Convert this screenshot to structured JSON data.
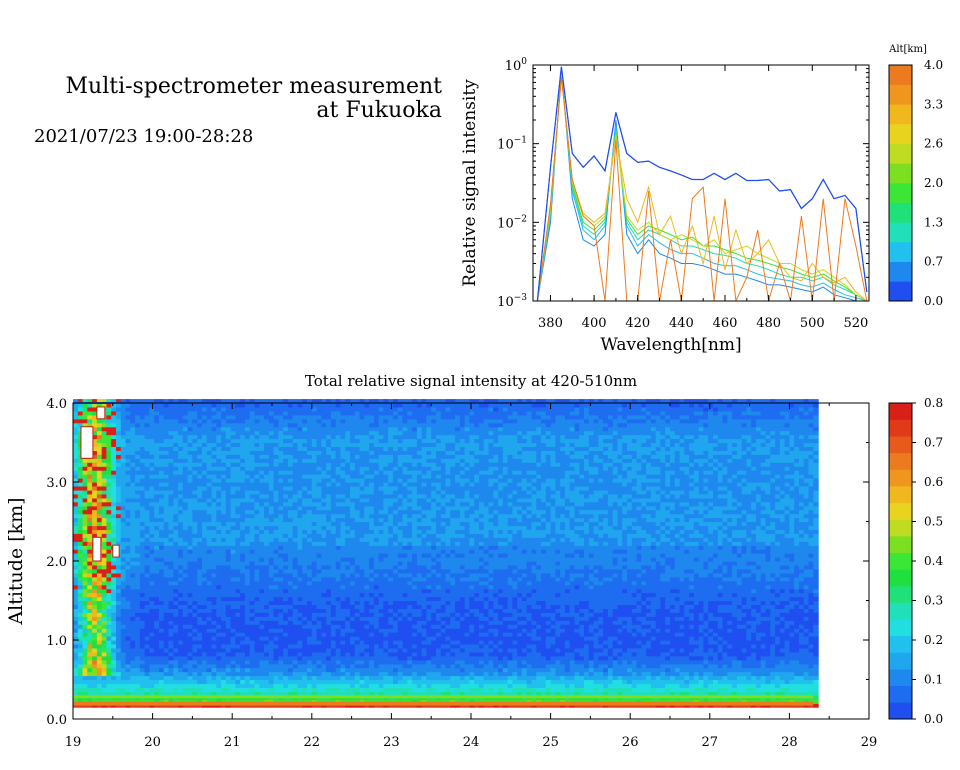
{
  "header": {
    "title_line1": "Multi-spectrometer measurement",
    "title_line2": "at Fukuoka",
    "datetime": "2021/07/23 19:00-28:28"
  },
  "chart_data": [
    {
      "type": "line",
      "xlabel": "Wavelength[nm]",
      "ylabel": "Relative signal intensity",
      "xlim": [
        372,
        526
      ],
      "ylim": [
        0.001,
        1
      ],
      "yscale": "log",
      "x_ticks": [
        "380",
        "400",
        "420",
        "440",
        "460",
        "480",
        "500",
        "520"
      ],
      "y_ticks": [
        "10^-3",
        "10^-2",
        "10^-1",
        "10^0"
      ],
      "colorbar": {
        "title": "Alt[km]",
        "labels": [
          "0.0",
          "0.7",
          "1.3",
          "2.0",
          "2.6",
          "3.3",
          "4.0"
        ],
        "colors": [
          "#1f4ff0",
          "#1e88ef",
          "#21c0ee",
          "#21dfb8",
          "#20e07a",
          "#3be637",
          "#7ddf22",
          "#c0dc22",
          "#e8d31f",
          "#f0b81e",
          "#ee961e",
          "#ec7a1e"
        ]
      },
      "x": [
        374,
        380,
        385,
        390,
        395,
        400,
        405,
        410,
        415,
        420,
        425,
        430,
        435,
        440,
        445,
        450,
        455,
        460,
        465,
        470,
        475,
        480,
        485,
        490,
        495,
        500,
        505,
        510,
        515,
        520,
        525
      ],
      "series": [
        {
          "color": "#1f4ff0",
          "values": [
            0.001,
            0.05,
            0.95,
            0.075,
            0.05,
            0.07,
            0.045,
            0.25,
            0.075,
            0.058,
            0.06,
            0.05,
            0.045,
            0.04,
            0.035,
            0.035,
            0.042,
            0.035,
            0.042,
            0.034,
            0.034,
            0.035,
            0.025,
            0.026,
            0.015,
            0.02,
            0.035,
            0.02,
            0.022,
            0.015,
            0.0013
          ]
        },
        {
          "color": "#1e88ef",
          "values": [
            0.001,
            0.01,
            0.9,
            0.02,
            0.006,
            0.005,
            0.007,
            0.2,
            0.007,
            0.004,
            0.006,
            0.004,
            0.0035,
            0.003,
            0.003,
            0.0028,
            0.0025,
            0.0022,
            0.0022,
            0.002,
            0.0018,
            0.0016,
            0.0016,
            0.0015,
            0.0014,
            0.0013,
            0.0015,
            0.0012,
            0.0011,
            0.001,
            0.001
          ]
        },
        {
          "color": "#21c0ee",
          "values": [
            0.001,
            0.012,
            0.85,
            0.025,
            0.008,
            0.006,
            0.009,
            0.17,
            0.009,
            0.005,
            0.007,
            0.0055,
            0.0045,
            0.004,
            0.004,
            0.0035,
            0.003,
            0.0028,
            0.0028,
            0.0025,
            0.0022,
            0.002,
            0.0019,
            0.0018,
            0.0016,
            0.0015,
            0.0017,
            0.0014,
            0.0012,
            0.0011,
            0.001
          ]
        },
        {
          "color": "#21dfb8",
          "values": [
            0.001,
            0.013,
            0.8,
            0.028,
            0.009,
            0.007,
            0.01,
            0.15,
            0.01,
            0.006,
            0.008,
            0.007,
            0.006,
            0.005,
            0.005,
            0.0045,
            0.004,
            0.0038,
            0.0035,
            0.003,
            0.0028,
            0.0025,
            0.0022,
            0.002,
            0.002,
            0.0018,
            0.002,
            0.0016,
            0.0014,
            0.0012,
            0.001
          ]
        },
        {
          "color": "#3be637",
          "values": [
            0.001,
            0.014,
            0.78,
            0.03,
            0.01,
            0.008,
            0.011,
            0.14,
            0.011,
            0.007,
            0.009,
            0.008,
            0.007,
            0.006,
            0.0065,
            0.005,
            0.005,
            0.0045,
            0.004,
            0.0035,
            0.0033,
            0.003,
            0.0027,
            0.0025,
            0.0022,
            0.002,
            0.0022,
            0.0018,
            0.0015,
            0.0012,
            0.001
          ]
        },
        {
          "color": "#c0dc22",
          "values": [
            0.001,
            0.015,
            0.75,
            0.032,
            0.012,
            0.009,
            0.012,
            0.13,
            0.012,
            0.008,
            0.01,
            0.007,
            0.006,
            0.007,
            0.006,
            0.005,
            0.006,
            0.004,
            0.0045,
            0.005,
            0.004,
            0.0035,
            0.003,
            0.003,
            0.0025,
            0.0022,
            0.0025,
            0.002,
            0.0016,
            0.0012,
            0.001
          ]
        },
        {
          "color": "#f0b81e",
          "values": [
            0.001,
            0.016,
            0.72,
            0.034,
            0.013,
            0.01,
            0.013,
            0.12,
            0.02,
            0.01,
            0.028,
            0.007,
            0.012,
            0.004,
            0.009,
            0.003,
            0.012,
            0.0025,
            0.008,
            0.003,
            0.004,
            0.006,
            0.003,
            0.002,
            0.0018,
            0.003,
            0.002,
            0.0017,
            0.002,
            0.0013,
            0.001
          ]
        },
        {
          "color": "#ec7a1e",
          "values": [
            0.001,
            0.017,
            0.7,
            0.035,
            0.012,
            0.009,
            0.001,
            0.11,
            0.001,
            0.001,
            0.025,
            0.001,
            0.006,
            0.001,
            0.02,
            0.028,
            0.001,
            0.02,
            0.001,
            0.002,
            0.008,
            0.001,
            0.003,
            0.001,
            0.012,
            0.001,
            0.02,
            0.001,
            0.02,
            0.005,
            0.001
          ]
        }
      ]
    },
    {
      "type": "heatmap",
      "title": "Total relative signal intensity at 420-510nm",
      "xlabel": "",
      "ylabel": "Altitude [km]",
      "xlim": [
        19,
        29
      ],
      "ylim": [
        0,
        4
      ],
      "data_x_range": [
        19,
        28.3
      ],
      "x_ticks": [
        "19",
        "20",
        "21",
        "22",
        "23",
        "24",
        "25",
        "26",
        "27",
        "28",
        "29"
      ],
      "y_ticks": [
        "0.0",
        "1.0",
        "2.0",
        "3.0",
        "4.0"
      ],
      "colorbar": {
        "labels": [
          "0.0",
          "0.1",
          "0.2",
          "0.3",
          "0.4",
          "0.5",
          "0.6",
          "0.7",
          "0.8"
        ],
        "colors": [
          "#1f4ff0",
          "#1e6cef",
          "#1e88ef",
          "#20a6ee",
          "#21c0ee",
          "#21dfe0",
          "#21dfb8",
          "#20e07a",
          "#20e040",
          "#3be637",
          "#7ddf22",
          "#c0dc22",
          "#e8d31f",
          "#f0b81e",
          "#ee961e",
          "#ec7a1e",
          "#e85a1c",
          "#e03a1a",
          "#d82018"
        ]
      },
      "altitude_km": [
        0.15,
        0.2,
        0.3,
        0.5,
        0.8,
        1.0,
        1.3,
        1.6,
        2.0,
        2.5,
        3.0,
        3.5,
        4.0
      ],
      "typical_intensity": [
        0.75,
        0.4,
        0.28,
        0.16,
        0.06,
        0.05,
        0.06,
        0.08,
        0.12,
        0.13,
        0.12,
        0.13,
        0.05
      ]
    }
  ]
}
